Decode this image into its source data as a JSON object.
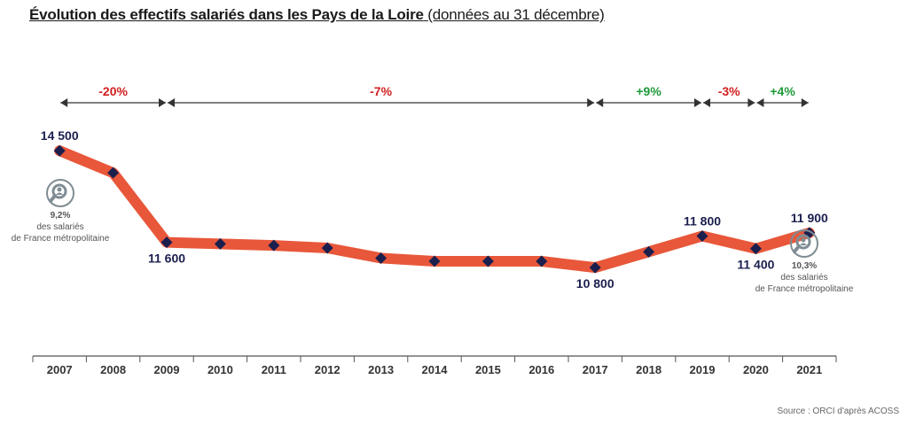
{
  "title": {
    "main": "Évolution des effectifs salariés dans les Pays de la Loire",
    "sub": "(données au 31 décembre)"
  },
  "source": "Source : ORCI d'après ACOSS",
  "colors": {
    "line": "#e8573a",
    "marker": "#1b1f4e",
    "negative": "#d11f1f",
    "positive": "#1f9a3a",
    "arrow": "#333333",
    "icon": "#7f8c93"
  },
  "chart_data": {
    "type": "line",
    "categories": [
      "2007",
      "2008",
      "2009",
      "2010",
      "2011",
      "2012",
      "2013",
      "2014",
      "2015",
      "2016",
      "2017",
      "2018",
      "2019",
      "2020",
      "2021"
    ],
    "values": [
      14500,
      13800,
      11600,
      11550,
      11500,
      11420,
      11100,
      11000,
      11000,
      11000,
      10800,
      11300,
      11800,
      11400,
      11900
    ],
    "ylim": [
      8000,
      16000
    ],
    "grid": false,
    "data_labels": [
      {
        "index": 0,
        "text": "14 500",
        "pos": "above"
      },
      {
        "index": 2,
        "text": "11 600",
        "pos": "below"
      },
      {
        "index": 10,
        "text": "10 800",
        "pos": "below"
      },
      {
        "index": 12,
        "text": "11 800",
        "pos": "above"
      },
      {
        "index": 13,
        "text": "11 400",
        "pos": "below"
      },
      {
        "index": 14,
        "text": "11 900",
        "pos": "above"
      }
    ],
    "periods": [
      {
        "from": 0,
        "to": 2,
        "label": "-20%",
        "sign": "negative"
      },
      {
        "from": 2,
        "to": 10,
        "label": "-7%",
        "sign": "negative"
      },
      {
        "from": 10,
        "to": 12,
        "label": "+9%",
        "sign": "positive"
      },
      {
        "from": 12,
        "to": 13,
        "label": "-3%",
        "sign": "negative"
      },
      {
        "from": 13,
        "to": 14,
        "label": "+4%",
        "sign": "positive"
      }
    ],
    "annotations": [
      {
        "index": 0,
        "value": "9,2%",
        "line1": "des salariés",
        "line2": "de France métropolitaine",
        "icon": "magnifier-person-icon"
      },
      {
        "index": 14,
        "value": "10,3%",
        "line1": "des salariés",
        "line2": "de France métropolitaine",
        "icon": "magnifier-person-icon"
      }
    ]
  }
}
